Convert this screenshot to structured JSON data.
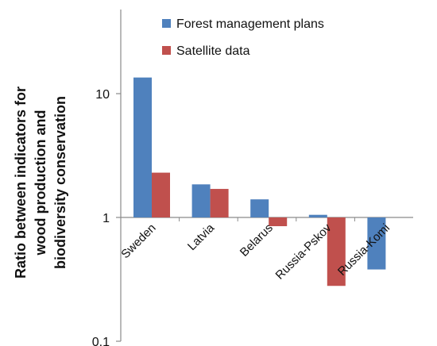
{
  "chart_data": {
    "type": "bar",
    "title": "",
    "xlabel": "",
    "ylabel_lines": [
      "Ratio between indicators for",
      "wood production and",
      "biodiversity conservation"
    ],
    "y_scale": "log",
    "ylim": [
      0.1,
      20
    ],
    "y_ticks": [
      {
        "value": 0.1,
        "label": "0.1"
      },
      {
        "value": 1,
        "label": "1"
      },
      {
        "value": 10,
        "label": "10"
      }
    ],
    "baseline": 1,
    "categories": [
      "Sweden",
      "Latvia",
      "Belarus",
      "Russia-Pskov",
      "Russia-Komi"
    ],
    "series": [
      {
        "name": "Forest management plans",
        "color": "#4f81bd",
        "values": [
          13.5,
          1.85,
          1.4,
          1.05,
          0.38
        ]
      },
      {
        "name": "Satellite data",
        "color": "#c0504d",
        "values": [
          2.3,
          1.7,
          0.85,
          0.28,
          null
        ]
      }
    ],
    "grid": false,
    "legend_position": "top-right"
  }
}
